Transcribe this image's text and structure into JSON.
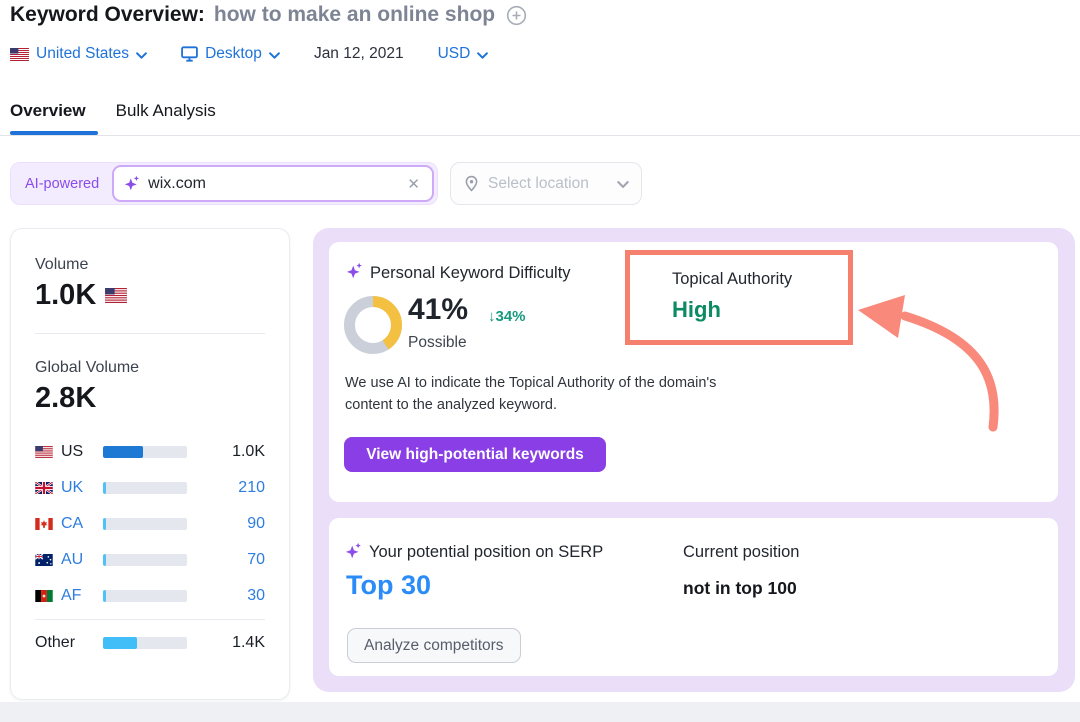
{
  "header": {
    "title": "Keyword Overview:",
    "keyword": "how to make an online shop",
    "filters": {
      "country": "United States",
      "device": "Desktop",
      "date": "Jan 12, 2021",
      "currency": "USD"
    }
  },
  "tabs": [
    {
      "label": "Overview",
      "active": true
    },
    {
      "label": "Bulk Analysis",
      "active": false
    }
  ],
  "search": {
    "ai_badge": "AI-powered",
    "query": "wix.com",
    "clear_icon": "✕",
    "location_placeholder": "Select location"
  },
  "volume": {
    "label": "Volume",
    "value": "1.0K",
    "global_label": "Global Volume",
    "global_value": "2.8K",
    "countries": [
      {
        "code": "US",
        "value": "1.0K",
        "bar_pct": 48
      },
      {
        "code": "UK",
        "value": "210",
        "bar_pct": 4
      },
      {
        "code": "CA",
        "value": "90",
        "bar_pct": 4
      },
      {
        "code": "AU",
        "value": "70",
        "bar_pct": 4
      },
      {
        "code": "AF",
        "value": "30",
        "bar_pct": 4
      }
    ],
    "other": {
      "label": "Other",
      "value": "1.4K",
      "bar_pct": 40
    }
  },
  "pkd": {
    "title": "Personal Keyword Difficulty",
    "percent": "41%",
    "percent_value": 41,
    "delta": "↓34%",
    "level": "Possible",
    "description_line1": "We use AI to indicate the Topical Authority of the domain's",
    "description_line2": "content to the analyzed keyword.",
    "cta": "View high-potential keywords"
  },
  "topical_authority": {
    "title": "Topical Authority",
    "value": "High"
  },
  "serp": {
    "potential_title": "Your potential position on SERP",
    "potential_value": "Top 30",
    "current_title": "Current position",
    "current_value": "not in top 100",
    "cta": "Analyze competitors"
  },
  "colors": {
    "link_blue": "#1f72d8",
    "accent_purple": "#8a3fe6",
    "panel_lavender": "#eadef8",
    "annotation_salmon": "#f5806e",
    "high_green": "#0b8a63",
    "delta_teal": "#169a7d",
    "donut_yellow": "#f4c042",
    "donut_gray": "#cbcfd9",
    "bar_blue": "#1d79d4",
    "bar_light_blue": "#41bdf8",
    "top30_blue": "#2b8cf8"
  }
}
